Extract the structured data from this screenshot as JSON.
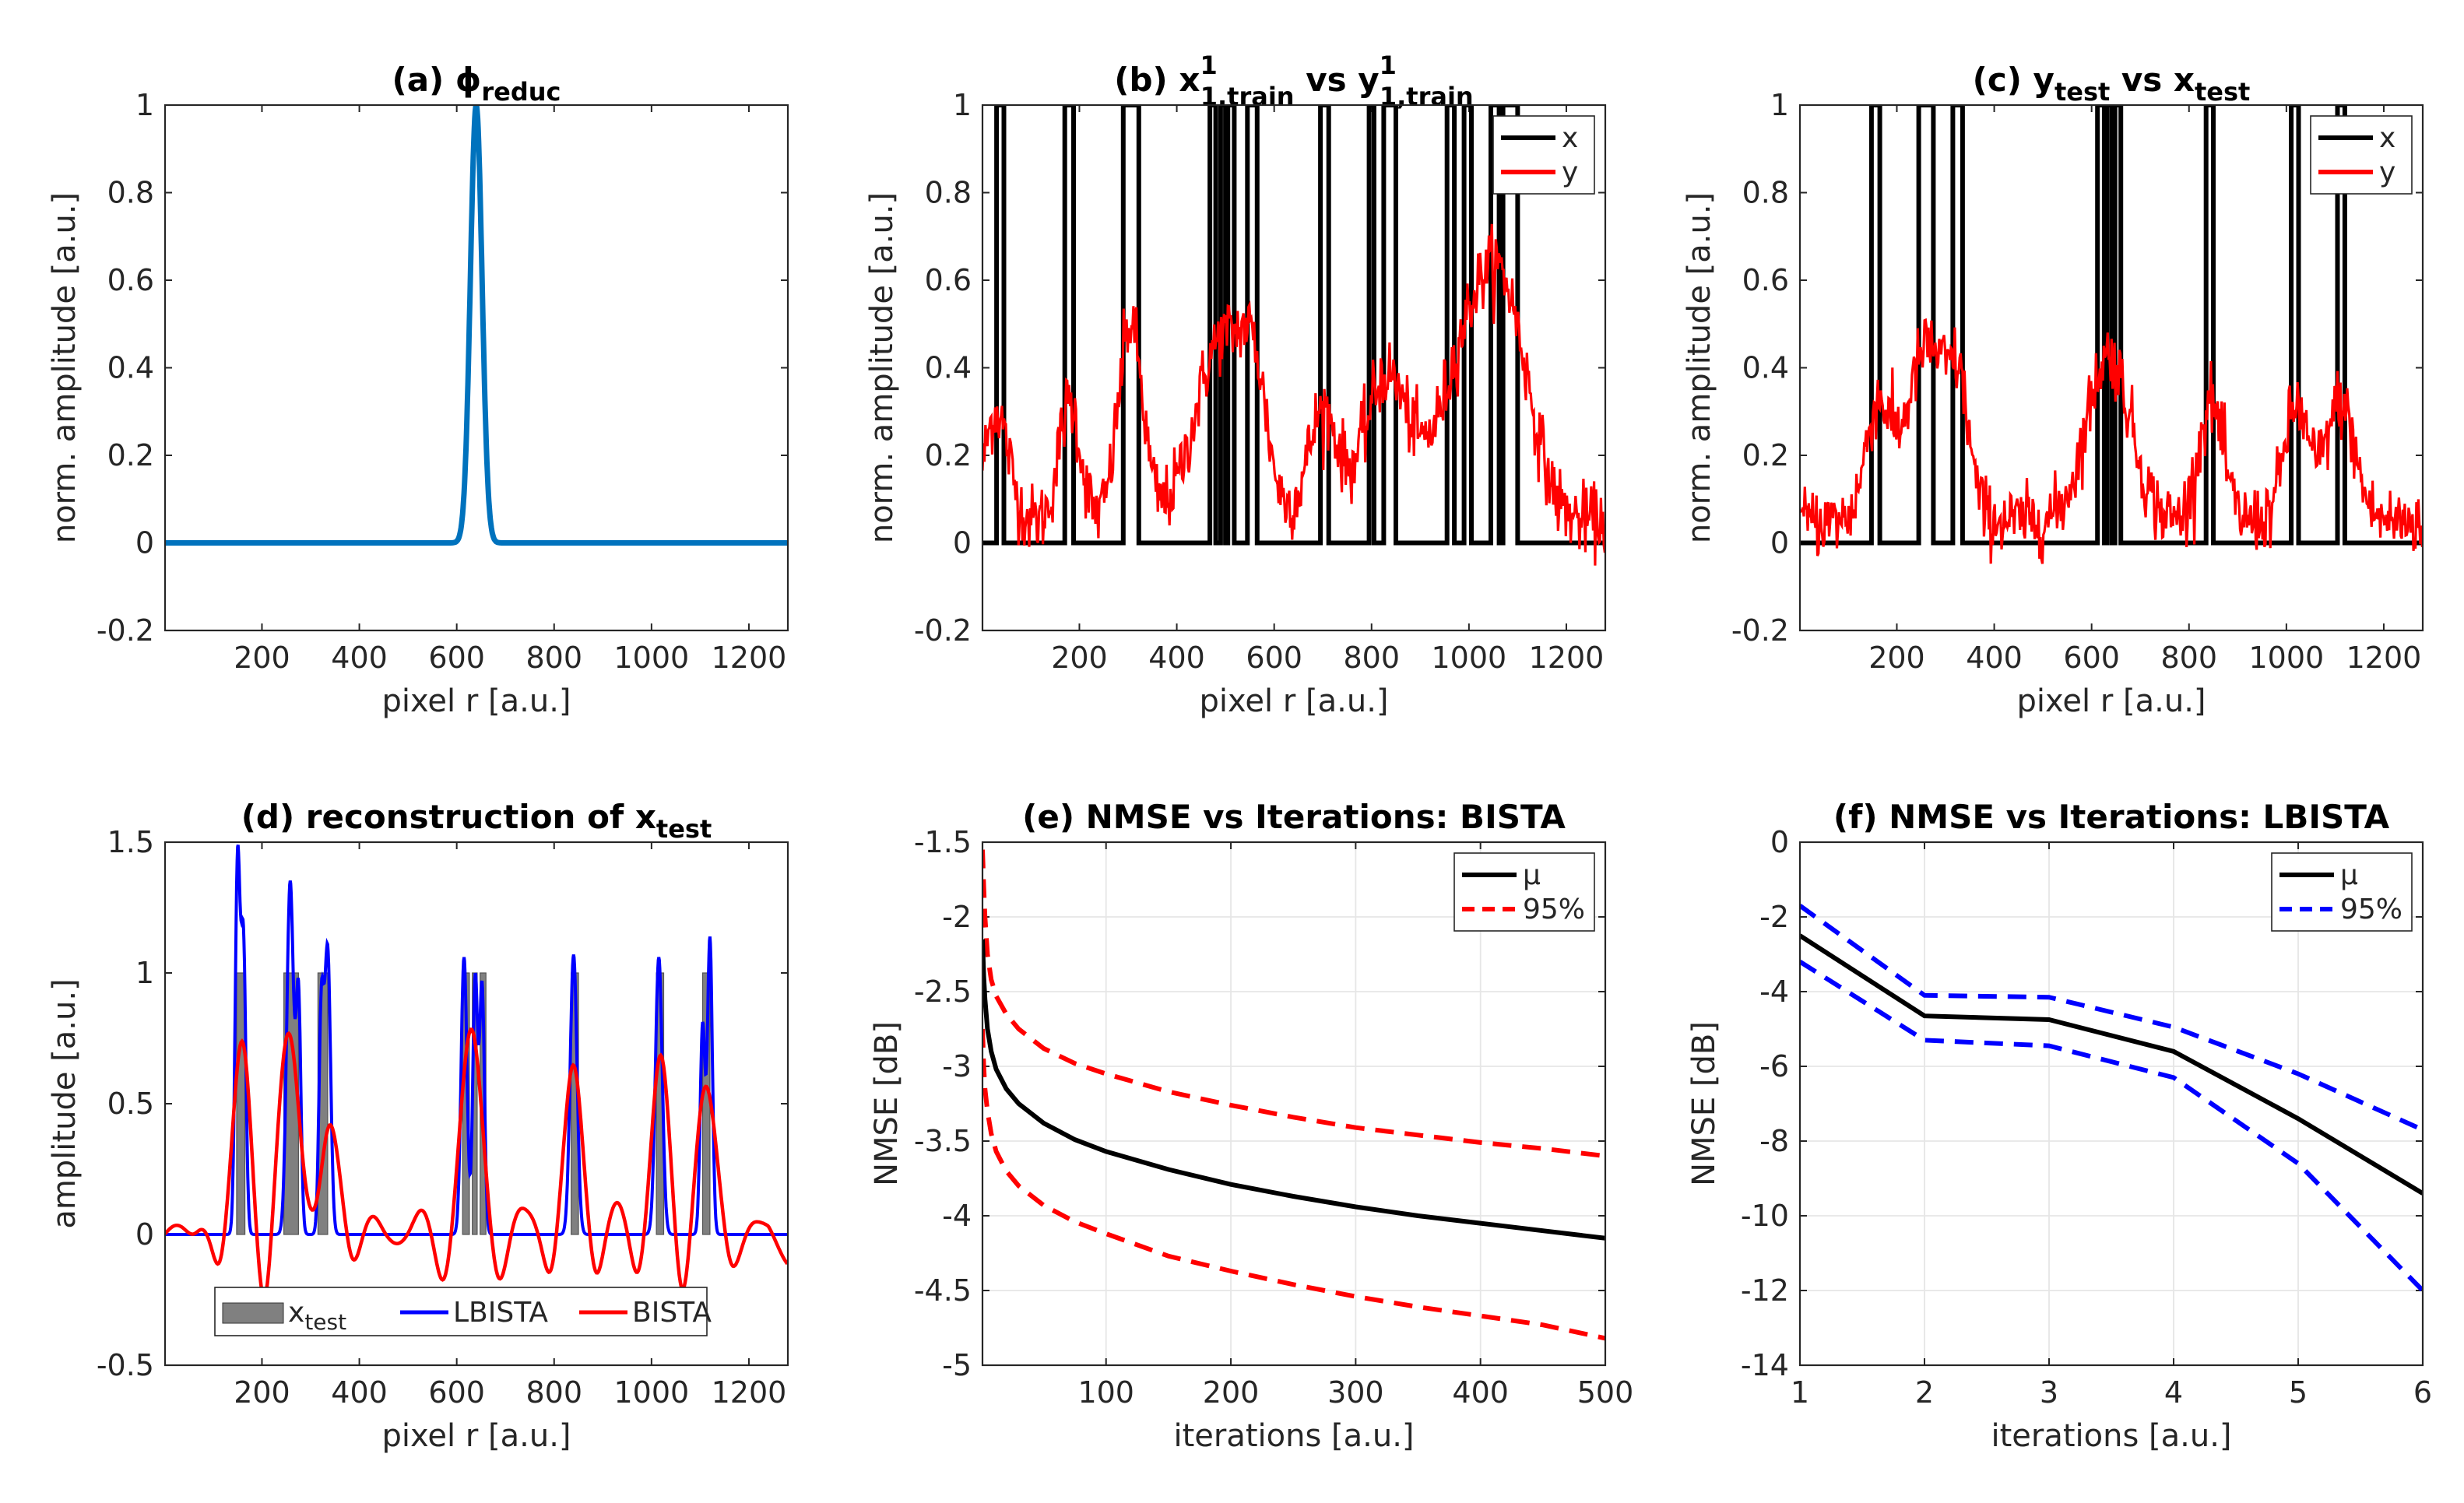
{
  "chart_data": [
    {
      "id": "a",
      "type": "line",
      "title": "(a) ϕ",
      "title_sub": "reduc",
      "xlabel": "pixel r [a.u.]",
      "ylabel": "norm. amplitude [a.u.]",
      "xlim": [
        1,
        1280
      ],
      "ylim": [
        -0.2,
        1
      ],
      "xticks": [
        200,
        400,
        600,
        800,
        1000,
        1200
      ],
      "yticks": [
        -0.2,
        0,
        0.2,
        0.4,
        0.6,
        0.8,
        1
      ],
      "ytick_labels": [
        "-0.2",
        "0",
        "0.2",
        "0.4",
        "0.6",
        "0.8",
        "1"
      ],
      "grid": false,
      "series": [
        {
          "name": "ϕ_reduc",
          "color": "#0072BD",
          "kind": "gaussian",
          "center": 640,
          "sigma": 12,
          "amplitude": 1
        }
      ]
    },
    {
      "id": "b",
      "type": "line",
      "title": "(b) x",
      "title_parts": [
        {
          "t": "(b) x",
          "s": "n"
        },
        {
          "t": "1",
          "s": "sup"
        },
        {
          "t": "1,train",
          "s": "sub"
        },
        {
          "t": " vs y",
          "s": "n"
        },
        {
          "t": "1",
          "s": "sup"
        },
        {
          "t": "1,train",
          "s": "sub"
        }
      ],
      "xlabel": "pixel r [a.u.]",
      "ylabel": "norm. amplitude [a.u.]",
      "xlim": [
        1,
        1280
      ],
      "ylim": [
        -0.2,
        1
      ],
      "xticks": [
        200,
        400,
        600,
        800,
        1000,
        1200
      ],
      "yticks": [
        -0.2,
        0,
        0.2,
        0.4,
        0.6,
        0.8,
        1
      ],
      "ytick_labels": [
        "-0.2",
        "0",
        "0.2",
        "0.4",
        "0.6",
        "0.8",
        "1"
      ],
      "grid": false,
      "legend": {
        "position": "top-right",
        "entries": [
          {
            "label": "x",
            "color": "#000000"
          },
          {
            "label": "y",
            "color": "#ff0000"
          }
        ]
      },
      "pulses": [
        [
          30,
          45
        ],
        [
          170,
          188
        ],
        [
          290,
          322
        ],
        [
          468,
          480
        ],
        [
          490,
          500
        ],
        [
          505,
          518
        ],
        [
          545,
          565
        ],
        [
          695,
          712
        ],
        [
          795,
          805
        ],
        [
          825,
          850
        ],
        [
          955,
          970
        ],
        [
          990,
          1005
        ],
        [
          1045,
          1062
        ],
        [
          1070,
          1100
        ]
      ],
      "noisy_peaks": [
        [
          30,
          0.25,
          25
        ],
        [
          180,
          0.27,
          22
        ],
        [
          305,
          0.45,
          25
        ],
        [
          495,
          0.42,
          55
        ],
        [
          560,
          0.2,
          25
        ],
        [
          700,
          0.25,
          30
        ],
        [
          830,
          0.33,
          45
        ],
        [
          1000,
          0.38,
          60
        ],
        [
          1080,
          0.38,
          50
        ]
      ],
      "noise_level": 0.04
    },
    {
      "id": "c",
      "type": "line",
      "title": "(c) y",
      "title_parts": [
        {
          "t": "(c) y",
          "s": "n"
        },
        {
          "t": "test",
          "s": "sub"
        },
        {
          "t": " vs x",
          "s": "n"
        },
        {
          "t": "test",
          "s": "sub"
        }
      ],
      "xlabel": "pixel r [a.u.]",
      "ylabel": "norm. amplitude [a.u.]",
      "xlim": [
        1,
        1280
      ],
      "ylim": [
        -0.2,
        1
      ],
      "xticks": [
        200,
        400,
        600,
        800,
        1000,
        1200
      ],
      "yticks": [
        -0.2,
        0,
        0.2,
        0.4,
        0.6,
        0.8,
        1
      ],
      "ytick_labels": [
        "-0.2",
        "0",
        "0.2",
        "0.4",
        "0.6",
        "0.8",
        "1"
      ],
      "grid": false,
      "legend": {
        "position": "top-right",
        "entries": [
          {
            "label": "x",
            "color": "#000000"
          },
          {
            "label": "y",
            "color": "#ff0000"
          }
        ]
      },
      "pulses": [
        [
          148,
          165
        ],
        [
          245,
          275
        ],
        [
          315,
          335
        ],
        [
          612,
          626
        ],
        [
          632,
          642
        ],
        [
          648,
          660
        ],
        [
          835,
          850
        ],
        [
          1010,
          1025
        ],
        [
          1105,
          1120
        ]
      ],
      "noisy_peaks": [
        [
          160,
          0.25,
          25
        ],
        [
          265,
          0.4,
          45
        ],
        [
          330,
          0.2,
          20
        ],
        [
          635,
          0.38,
          45
        ],
        [
          845,
          0.27,
          25
        ],
        [
          1020,
          0.26,
          25
        ],
        [
          1110,
          0.27,
          30
        ]
      ],
      "noise_level": 0.04
    },
    {
      "id": "d",
      "type": "line",
      "title": "(d) reconstruction of x",
      "title_parts": [
        {
          "t": "(d) reconstruction of x",
          "s": "n"
        },
        {
          "t": "test",
          "s": "sub"
        }
      ],
      "xlabel": "pixel r [a.u.]",
      "ylabel": "amplitude [a.u.]",
      "xlim": [
        1,
        1280
      ],
      "ylim": [
        -0.5,
        1.5
      ],
      "xticks": [
        200,
        400,
        600,
        800,
        1000,
        1200
      ],
      "yticks": [
        -0.5,
        0,
        0.5,
        1,
        1.5
      ],
      "ytick_labels": [
        "-0.5",
        "0",
        "0.5",
        "1",
        "1.5"
      ],
      "grid": false,
      "legend": {
        "position": "bottom",
        "entries": [
          {
            "label": "x",
            "sub": "test",
            "color": "#808080",
            "kind": "patch"
          },
          {
            "label": "LBISTA",
            "color": "#0000ff",
            "kind": "line"
          },
          {
            "label": "BISTA",
            "color": "#ff0000",
            "kind": "line"
          }
        ]
      },
      "bars": [
        [
          148,
          165
        ],
        [
          245,
          275
        ],
        [
          315,
          335
        ],
        [
          612,
          626
        ],
        [
          632,
          642
        ],
        [
          648,
          660
        ],
        [
          835,
          850
        ],
        [
          1010,
          1025
        ],
        [
          1105,
          1120
        ]
      ],
      "lbista_peaks": [
        [
          150,
          1.42,
          5
        ],
        [
          162,
          1.1,
          5
        ],
        [
          258,
          1.35,
          7
        ],
        [
          275,
          0.9,
          5
        ],
        [
          335,
          1.08,
          6
        ],
        [
          322,
          0.85,
          5
        ],
        [
          615,
          1.06,
          6
        ],
        [
          638,
          0.98,
          5
        ],
        [
          652,
          0.95,
          5
        ],
        [
          840,
          1.07,
          7
        ],
        [
          1015,
          1.06,
          7
        ],
        [
          1105,
          0.8,
          5
        ],
        [
          1120,
          1.13,
          5
        ]
      ],
      "bista_peaks": [
        [
          160,
          0.7,
          18
        ],
        [
          260,
          0.75,
          22
        ],
        [
          335,
          0.44,
          20
        ],
        [
          630,
          0.75,
          22
        ],
        [
          840,
          0.62,
          18
        ],
        [
          1018,
          0.62,
          18
        ],
        [
          1112,
          0.52,
          20
        ]
      ]
    },
    {
      "id": "e",
      "type": "line",
      "title": "(e) NMSE vs Iterations: BISTA",
      "xlabel": "iterations [a.u.]",
      "ylabel": "NMSE [dB]",
      "xlim": [
        1,
        500
      ],
      "ylim": [
        -5,
        -1.5
      ],
      "xticks": [
        100,
        200,
        300,
        400,
        500
      ],
      "yticks": [
        -5,
        -4.5,
        -4,
        -3.5,
        -3,
        -2.5,
        -2,
        -1.5
      ],
      "ytick_labels": [
        "-5",
        "-4.5",
        "-4",
        "-3.5",
        "-3",
        "-2.5",
        "-2",
        "-1.5"
      ],
      "grid": true,
      "legend": {
        "position": "top-right",
        "entries": [
          {
            "label": "μ",
            "color": "#000000",
            "dash": false
          },
          {
            "label": "95%",
            "color": "#ff0000",
            "dash": true
          }
        ]
      },
      "x": [
        1,
        2,
        3,
        5,
        8,
        12,
        20,
        30,
        50,
        75,
        100,
        150,
        200,
        250,
        300,
        350,
        400,
        450,
        500
      ],
      "mean": [
        -2.15,
        -2.4,
        -2.55,
        -2.75,
        -2.9,
        -3.02,
        -3.15,
        -3.25,
        -3.38,
        -3.49,
        -3.57,
        -3.69,
        -3.79,
        -3.87,
        -3.94,
        -4.0,
        -4.05,
        -4.1,
        -4.15
      ],
      "upper": [
        -1.55,
        -1.8,
        -2.0,
        -2.25,
        -2.42,
        -2.53,
        -2.65,
        -2.75,
        -2.88,
        -2.98,
        -3.05,
        -3.17,
        -3.26,
        -3.34,
        -3.41,
        -3.46,
        -3.51,
        -3.55,
        -3.6
      ],
      "lower": [
        -2.75,
        -3.0,
        -3.15,
        -3.3,
        -3.45,
        -3.57,
        -3.7,
        -3.8,
        -3.93,
        -4.04,
        -4.12,
        -4.27,
        -4.37,
        -4.46,
        -4.54,
        -4.61,
        -4.67,
        -4.73,
        -4.82
      ]
    },
    {
      "id": "f",
      "type": "line",
      "title": "(f) NMSE vs Iterations: LBISTA",
      "xlabel": "iterations [a.u.]",
      "ylabel": "NMSE [dB]",
      "xlim": [
        1,
        6
      ],
      "ylim": [
        -14,
        0
      ],
      "xticks": [
        1,
        2,
        3,
        4,
        5,
        6
      ],
      "yticks": [
        -14,
        -12,
        -10,
        -8,
        -6,
        -4,
        -2,
        0
      ],
      "ytick_labels": [
        "-14",
        "-12",
        "-10",
        "-8",
        "-6",
        "-4",
        "-2",
        "0"
      ],
      "grid": true,
      "legend": {
        "position": "top-right",
        "entries": [
          {
            "label": "μ",
            "color": "#000000",
            "dash": false
          },
          {
            "label": "95%",
            "color": "#0000ff",
            "dash": true
          }
        ]
      },
      "x": [
        1,
        2,
        3,
        4,
        5,
        6
      ],
      "mean": [
        -2.5,
        -4.65,
        -4.75,
        -5.6,
        -7.4,
        -9.4
      ],
      "upper": [
        -1.7,
        -4.1,
        -4.15,
        -4.95,
        -6.2,
        -7.7
      ],
      "lower": [
        -3.2,
        -5.3,
        -5.45,
        -6.3,
        -8.6,
        -12.0
      ]
    }
  ]
}
